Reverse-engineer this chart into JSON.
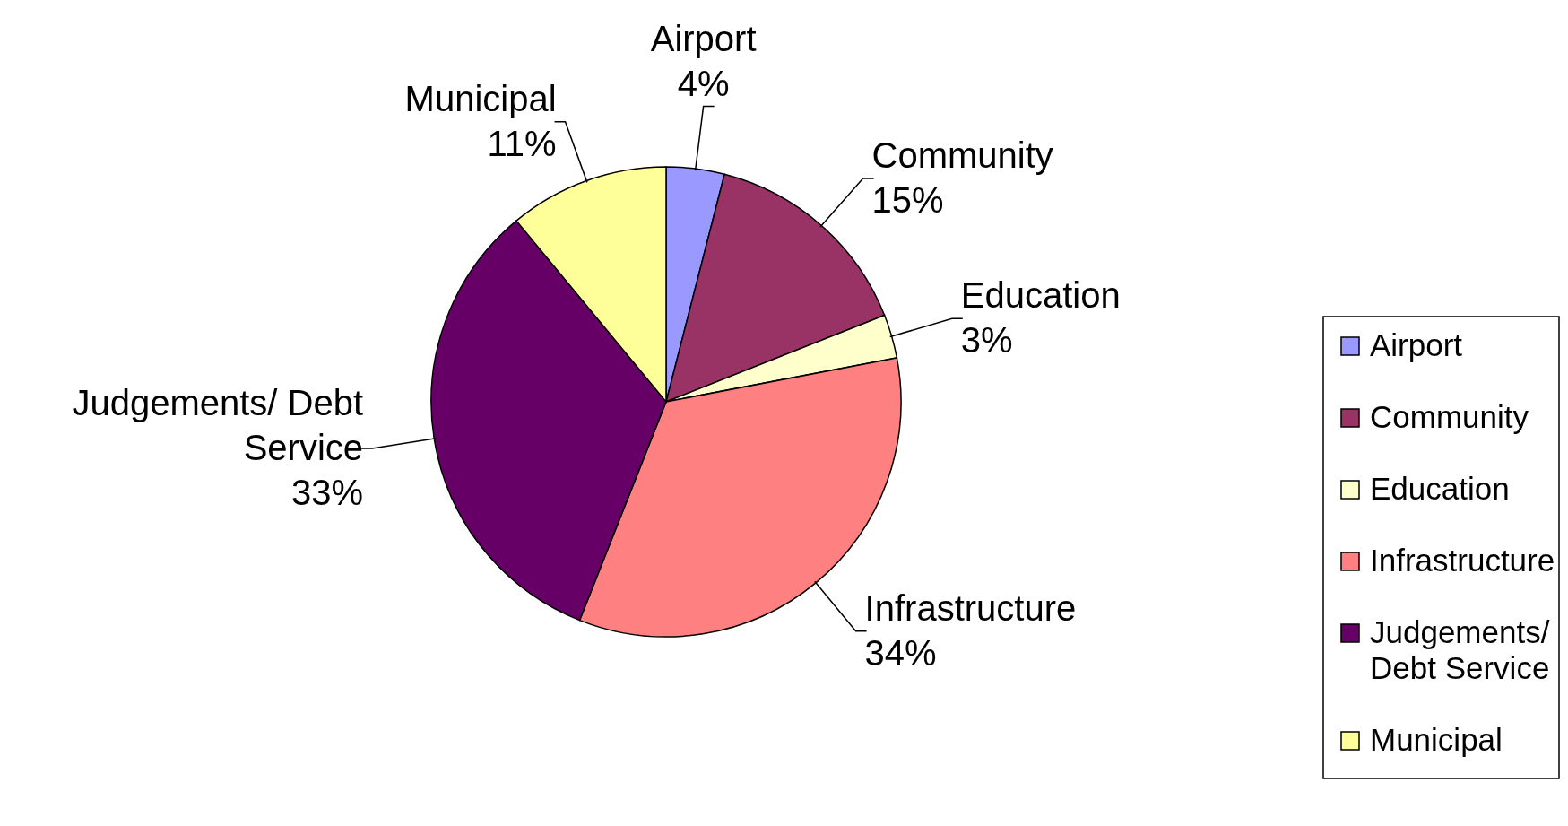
{
  "chart_data": {
    "type": "pie",
    "categories": [
      "Airport",
      "Community",
      "Education",
      "Infrastructure",
      "Judgements/ Debt Service",
      "Municipal"
    ],
    "values": [
      4,
      15,
      3,
      34,
      33,
      11
    ],
    "value_labels": [
      "4%",
      "15%",
      "3%",
      "34%",
      "33%",
      "11%"
    ],
    "colors": [
      "#9999ff",
      "#993366",
      "#ffffcc",
      "#ff8080",
      "#660066",
      "#ffff99"
    ],
    "legend": "right"
  }
}
